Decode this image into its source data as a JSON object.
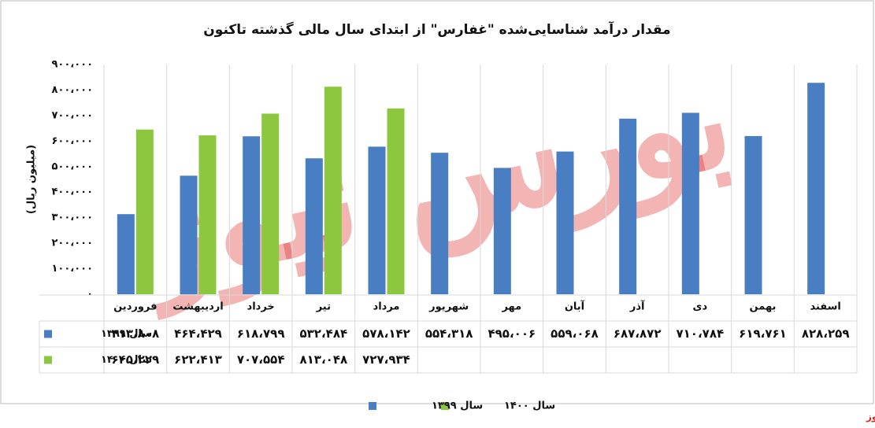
{
  "chart_data": {
    "type": "bar",
    "title": "مقدار درآمد شناسایی‌شده \"غفارس\" از ابتدای سال مالی گذشته تاکنون",
    "y_label": "(میلیون ریال)",
    "categories": [
      "فروردین",
      "اردیبهشت",
      "خرداد",
      "تیر",
      "مرداد",
      "شهریور",
      "مهر",
      "آبان",
      "آذر",
      "دی",
      "بهمن",
      "اسفند"
    ],
    "series": [
      {
        "name": "سال ۱۳۹۹",
        "color": "#4a7ec2",
        "values": [
          313808,
          464429,
          618799,
          532484,
          578142,
          554318,
          495006,
          559068,
          687872,
          710784,
          619761,
          828259
        ],
        "value_labels": [
          "۳۱۳،۸۰۸",
          "۴۶۴،۴۲۹",
          "۶۱۸،۷۹۹",
          "۵۳۲،۴۸۴",
          "۵۷۸،۱۴۲",
          "۵۵۴،۳۱۸",
          "۴۹۵،۰۰۶",
          "۵۵۹،۰۶۸",
          "۶۸۷،۸۷۲",
          "۷۱۰،۷۸۴",
          "۶۱۹،۷۶۱",
          "۸۲۸،۲۵۹"
        ]
      },
      {
        "name": "سال ۱۴۰۰",
        "color": "#8dc63f",
        "values": [
          645229,
          622413,
          707554,
          813048,
          727934,
          null,
          null,
          null,
          null,
          null,
          null,
          null
        ],
        "value_labels": [
          "۶۴۵،۲۲۹",
          "۶۲۲،۴۱۳",
          "۷۰۷،۵۵۴",
          "۸۱۳،۰۴۸",
          "۷۲۷،۹۳۴",
          null,
          null,
          null,
          null,
          null,
          null,
          null
        ]
      }
    ],
    "ylim": [
      0,
      900000
    ],
    "yticks": [
      {
        "value": 0,
        "label": "۰"
      },
      {
        "value": 100000,
        "label": "۱۰۰،۰۰۰"
      },
      {
        "value": 200000,
        "label": "۲۰۰،۰۰۰"
      },
      {
        "value": 300000,
        "label": "۳۰۰،۰۰۰"
      },
      {
        "value": 400000,
        "label": "۴۰۰،۰۰۰"
      },
      {
        "value": 500000,
        "label": "۵۰۰،۰۰۰"
      },
      {
        "value": 600000,
        "label": "۶۰۰،۰۰۰"
      },
      {
        "value": 700000,
        "label": "۷۰۰،۰۰۰"
      },
      {
        "value": 800000,
        "label": "۸۰۰،۰۰۰"
      },
      {
        "value": 900000,
        "label": "۹۰۰،۰۰۰"
      }
    ],
    "watermark": "بورس نیوز",
    "source": "بورس نیوز"
  }
}
